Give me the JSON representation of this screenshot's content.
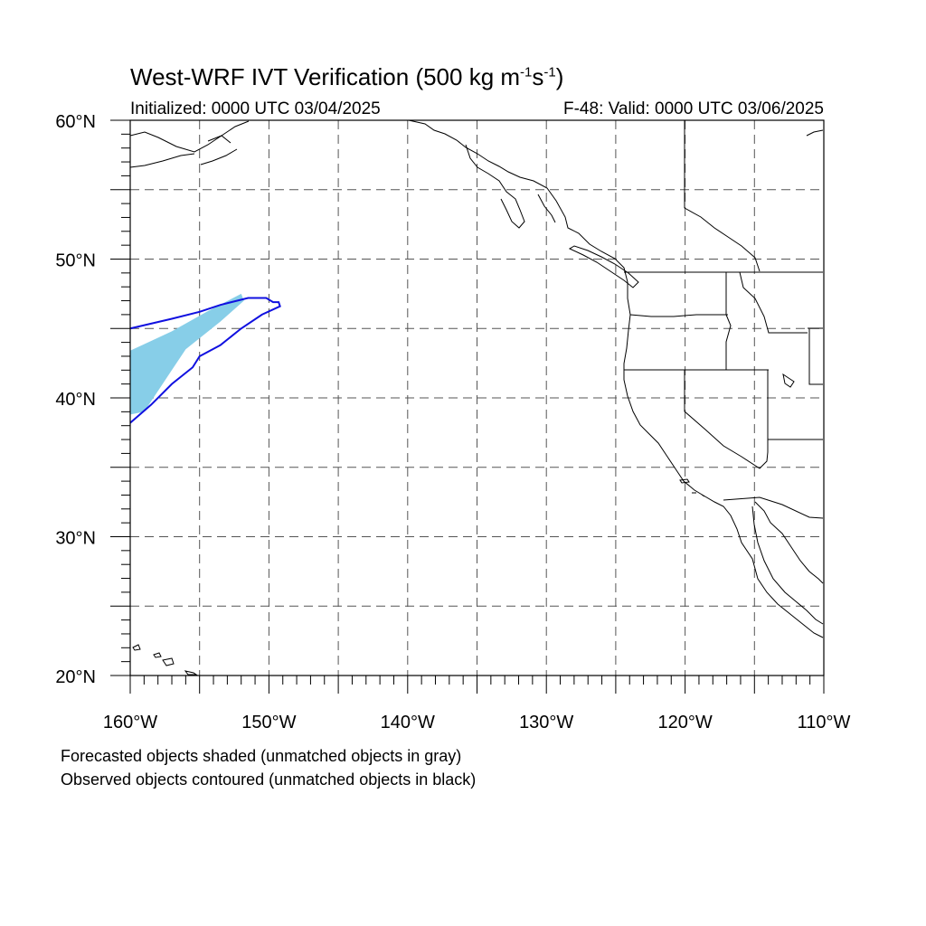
{
  "title": {
    "text_before": "West-WRF IVT Verification (500 kg m",
    "sup1": "-1",
    "mid": "s",
    "sup2": "-1",
    "text_after": ")"
  },
  "initialized": "Initialized: 0000 UTC 03/04/2025",
  "valid": "F-48: Valid: 0000 UTC 03/06/2025",
  "notes": [
    "Forecasted objects shaded (unmatched objects in gray)",
    "Observed objects contoured (unmatched objects in black)"
  ],
  "map": {
    "lon_range": [
      -160,
      -110
    ],
    "lat_range": [
      20,
      60
    ],
    "lon_ticks": [
      "160°W",
      "150°W",
      "140°W",
      "130°W",
      "120°W",
      "110°W"
    ],
    "lat_ticks": [
      "20°N",
      "30°N",
      "40°N",
      "50°N",
      "60°N"
    ],
    "grid_lon_step": 5,
    "grid_lat_step": 5,
    "grid_style": "dashed",
    "colors": {
      "forecast_fill": "#87CEE8",
      "observed_contour": "#1010E0",
      "coast": "#000000",
      "grid": "#555555"
    },
    "objects": {
      "forecast": {
        "label": "matched forecast object",
        "color": "#87CEE8",
        "outline_lonlat": [
          [
            -160,
            43.4
          ],
          [
            -157,
            44.8
          ],
          [
            -154.5,
            46.2
          ],
          [
            -152,
            47.5
          ],
          [
            -151.8,
            47.0
          ],
          [
            -153.5,
            45.5
          ],
          [
            -156,
            43.5
          ],
          [
            -157,
            42.0
          ],
          [
            -158,
            40.5
          ],
          [
            -159,
            39.0
          ],
          [
            -160,
            38.8
          ]
        ]
      },
      "observed": {
        "label": "matched observed object",
        "color": "#1010E0",
        "outline_lonlat": [
          [
            -160,
            45.0
          ],
          [
            -157,
            45.7
          ],
          [
            -155,
            46.2
          ],
          [
            -153.5,
            46.7
          ],
          [
            -151.5,
            47.2
          ],
          [
            -150.2,
            47.2
          ],
          [
            -149.7,
            46.9
          ],
          [
            -149.3,
            46.9
          ],
          [
            -149.2,
            46.6
          ],
          [
            -150.5,
            46.0
          ],
          [
            -152,
            45.0
          ],
          [
            -153.5,
            43.8
          ],
          [
            -155,
            43.0
          ],
          [
            -155.5,
            42.2
          ],
          [
            -157,
            41.0
          ],
          [
            -158.5,
            39.5
          ],
          [
            -160,
            38.2
          ]
        ]
      }
    }
  }
}
